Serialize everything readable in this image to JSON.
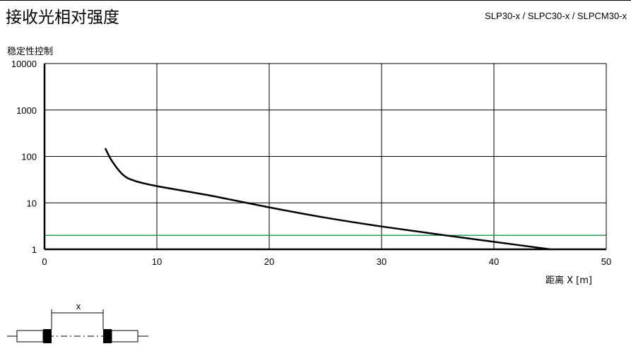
{
  "header": {
    "title": "接收光相对强度",
    "models": "SLP30-x / SLPC30-x / SLPCM30-x"
  },
  "chart_data": {
    "type": "line",
    "ylabel": "稳定性控制",
    "xlabel": "距离 X [m]",
    "x_ticks": [
      "0",
      "10",
      "20",
      "30",
      "40",
      "50"
    ],
    "y_ticks": [
      "1",
      "10",
      "100",
      "1000",
      "10000"
    ],
    "xlim": [
      0,
      50
    ],
    "ylim": [
      1,
      10000
    ],
    "y_scale": "log",
    "grid": true,
    "series": [
      {
        "color": "#000000",
        "x": [
          5.4,
          6,
          7,
          8,
          10,
          15,
          20,
          25,
          30,
          35,
          40,
          45
        ],
        "y": [
          150,
          80,
          40,
          30,
          23,
          14,
          8,
          4.8,
          3.1,
          2.1,
          1.45,
          1
        ]
      }
    ],
    "threshold": {
      "y": 2,
      "color": "#2e9e5b"
    }
  },
  "diagram": {
    "dimension_label": "x"
  },
  "colors": {
    "axis": "#000000",
    "grid": "#000000",
    "curve": "#000000",
    "threshold": "#2e9e5b"
  }
}
